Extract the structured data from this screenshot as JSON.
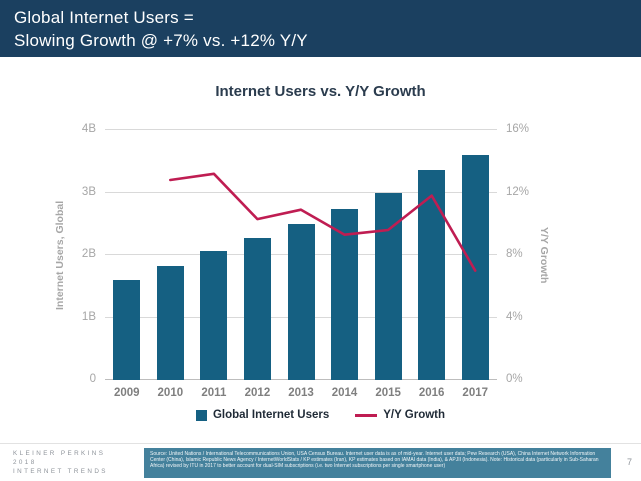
{
  "header": {
    "line1": "Global Internet Users =",
    "line2": "Slowing Growth @ +7% vs. +12% Y/Y"
  },
  "chart_data": {
    "type": "combo",
    "title": "Internet Users vs. Y/Y Growth",
    "categories": [
      "2009",
      "2010",
      "2011",
      "2012",
      "2013",
      "2014",
      "2015",
      "2016",
      "2017"
    ],
    "series": [
      {
        "name": "Global Internet Users",
        "type": "bar",
        "axis": "left",
        "unit": "B",
        "values": [
          1.6,
          1.83,
          2.06,
          2.28,
          2.5,
          2.73,
          3.0,
          3.36,
          3.6
        ]
      },
      {
        "name": "Y/Y Growth",
        "type": "line",
        "axis": "right",
        "unit": "%",
        "values": [
          null,
          12.8,
          13.2,
          10.3,
          10.9,
          9.3,
          9.6,
          11.8,
          7.0
        ]
      }
    ],
    "left_axis": {
      "label": "Internet Users, Global",
      "min": 0,
      "max": 4,
      "ticks": [
        "0",
        "1B",
        "2B",
        "3B",
        "4B"
      ]
    },
    "right_axis": {
      "label": "Y/Y Growth",
      "min": 0,
      "max": 16,
      "ticks": [
        "0%",
        "4%",
        "8%",
        "12%",
        "16%"
      ]
    },
    "grid": true,
    "legend_position": "bottom"
  },
  "footer": {
    "brand_line1": "KLEINER PERKINS",
    "brand_line2": "2018",
    "brand_line3": "INTERNET TRENDS",
    "source": "Source: United Nations / International Telecommunications Union, USA Census Bureau. Internet user data is as of mid-year. Internet user data; Pew Research (USA), China Internet Network Information Center (China), Islamic Republic News Agency / InternetWorldStats / KP estimates (Iran), KP estimates based on IAMAI data (India), & APJII (Indonesia). Note: Historical data (particularly in Sub-Saharan Africa) revised by ITU in 2017 to better account for dual-SIM subscriptions (i.e. two Internet subscriptions per single smartphone user)",
    "page": "7"
  },
  "colors": {
    "header_bg": "#1b4060",
    "bar": "#156082",
    "line": "#bf1d52",
    "source_box": "#44819c"
  }
}
